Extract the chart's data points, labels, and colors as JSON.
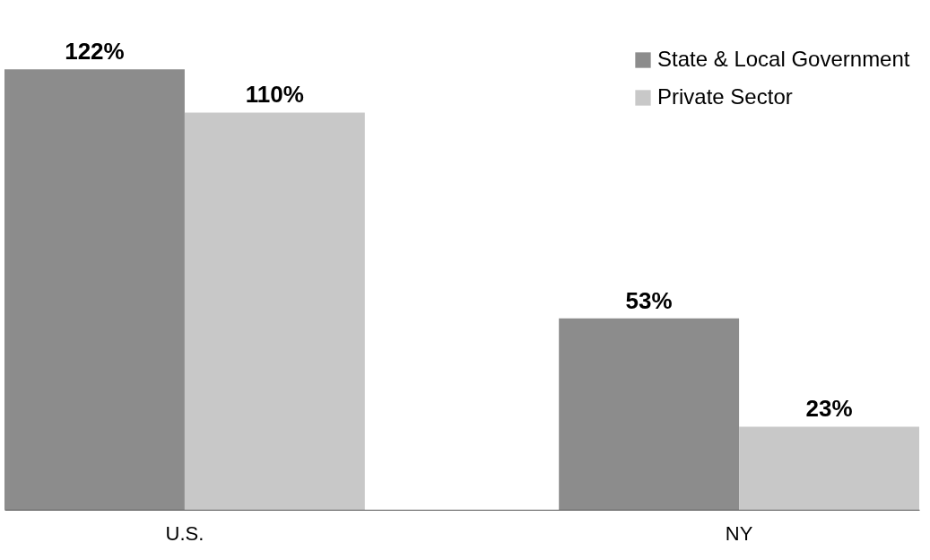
{
  "chart_data": {
    "type": "bar",
    "categories": [
      "U.S.",
      "NY"
    ],
    "series": [
      {
        "name": "State & Local Government",
        "color": "#8c8c8c",
        "values": [
          122,
          53
        ],
        "value_labels": [
          "122%",
          "53%"
        ]
      },
      {
        "name": "Private Sector",
        "color": "#c8c8c8",
        "values": [
          110,
          23
        ],
        "value_labels": [
          "110%",
          "23%"
        ]
      }
    ],
    "legend": "top right",
    "grid": false,
    "tick_labels": "x"
  }
}
